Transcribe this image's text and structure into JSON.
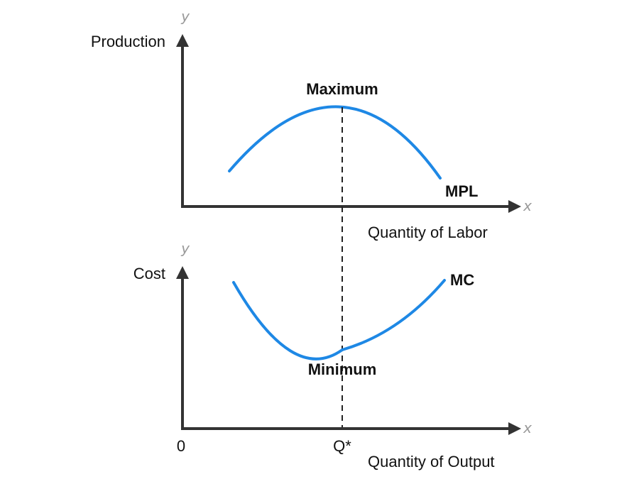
{
  "top_panel": {
    "y_axis_letter": "y",
    "x_axis_letter": "x",
    "y_label": "Production",
    "x_label": "Quantity of Labor",
    "curve_label": "MPL",
    "point_label": "Maximum"
  },
  "bottom_panel": {
    "y_axis_letter": "y",
    "x_axis_letter": "x",
    "y_label": "Cost",
    "x_label": "Quantity of Output",
    "curve_label": "MC",
    "point_label": "Minimum",
    "origin_label": "0",
    "q_star_label": "Q*"
  },
  "colors": {
    "curve": "#1E88E5",
    "axis": "#333333",
    "axis_letter": "#9a9a9a"
  }
}
